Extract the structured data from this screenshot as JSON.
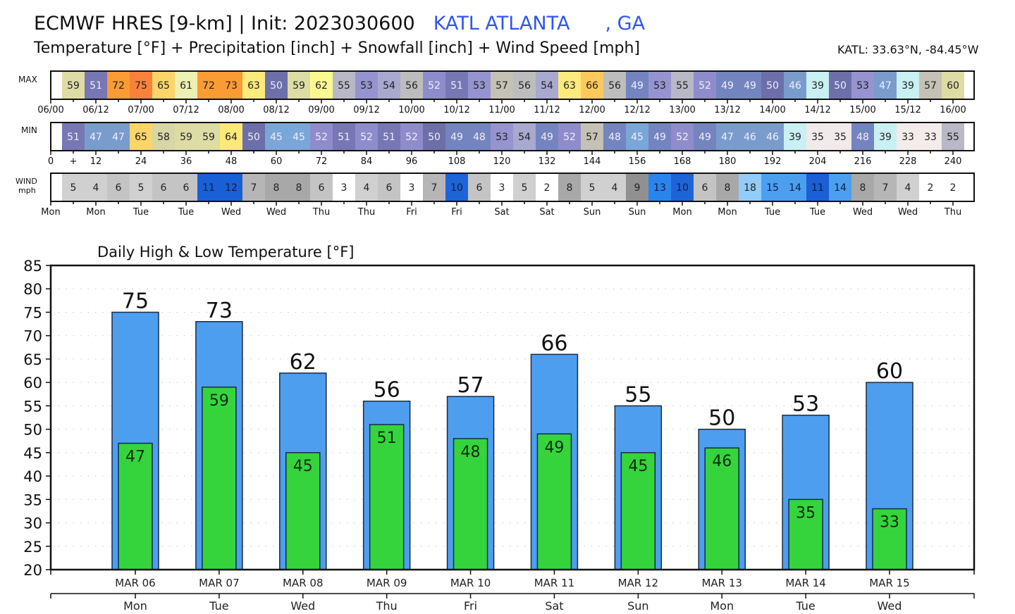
{
  "header": {
    "title": "ECMWF HRES [9-km] | Init: 2023030600",
    "station": "KATL ATLANTA",
    "state": ", GA",
    "subtitle": "Temperature [°F] + Precipitation [inch] + Snowfall [inch] + Wind Speed [mph]",
    "coords": "KATL: 33.63°N, -84.45°W"
  },
  "colors": {
    "station_text": "#3355ee",
    "high_bar": "#4d9eef",
    "low_bar": "#36d43c",
    "grid": "#cccccc"
  },
  "chart_data": [
    {
      "type": "heatmap",
      "name": "max-temperature-strip",
      "label": "MAX",
      "unit": "°F",
      "x_hours": [
        6,
        12,
        18,
        24,
        30,
        36,
        42,
        48,
        54,
        60,
        66,
        72,
        78,
        84,
        90,
        96,
        102,
        108,
        114,
        120,
        126,
        132,
        138,
        144,
        150,
        156,
        162,
        168,
        174,
        180,
        186,
        192,
        198,
        204,
        210,
        216,
        222,
        228,
        234,
        240
      ],
      "values": [
        59,
        51,
        72,
        75,
        65,
        61,
        72,
        73,
        63,
        50,
        59,
        62,
        55,
        53,
        54,
        56,
        52,
        51,
        53,
        57,
        56,
        54,
        63,
        66,
        56,
        49,
        53,
        55,
        52,
        49,
        49,
        50,
        46,
        39,
        50,
        53,
        47,
        39,
        57,
        60
      ],
      "tick_labels": [
        "06/00",
        "06/12",
        "07/00",
        "07/12",
        "08/00",
        "08/12",
        "09/00",
        "09/12",
        "10/00",
        "10/12",
        "11/00",
        "11/12",
        "12/00",
        "12/12",
        "13/00",
        "13/12",
        "14/00",
        "14/12",
        "15/00",
        "15/12",
        "16/00"
      ]
    },
    {
      "type": "heatmap",
      "name": "min-temperature-strip",
      "label": "MIN",
      "unit": "°F",
      "values": [
        51,
        47,
        47,
        65,
        58,
        59,
        59,
        64,
        50,
        45,
        45,
        52,
        51,
        52,
        51,
        52,
        50,
        49,
        48,
        53,
        54,
        49,
        52,
        57,
        48,
        45,
        49,
        52,
        49,
        47,
        46,
        46,
        39,
        35,
        35,
        48,
        39,
        33,
        33,
        55
      ],
      "tick_labels": [
        "0",
        "+",
        "12",
        "24",
        "36",
        "48",
        "60",
        "72",
        "84",
        "96",
        "108",
        "120",
        "132",
        "144",
        "156",
        "168",
        "180",
        "192",
        "204",
        "216",
        "228",
        "240"
      ]
    },
    {
      "type": "heatmap",
      "name": "wind-speed-strip",
      "label": "WIND",
      "sublabel": "mph",
      "unit": "mph",
      "values": [
        5,
        4,
        6,
        5,
        6,
        6,
        11,
        12,
        7,
        8,
        8,
        6,
        3,
        4,
        6,
        3,
        7,
        10,
        6,
        3,
        5,
        2,
        8,
        5,
        4,
        9,
        13,
        10,
        6,
        8,
        18,
        15,
        14,
        11,
        14,
        8,
        7,
        4,
        2,
        2
      ],
      "tick_labels": [
        "Mon",
        "Mon",
        "Tue",
        "Tue",
        "Wed",
        "Wed",
        "Thu",
        "Thu",
        "Fri",
        "Fri",
        "Sat",
        "Sat",
        "Sun",
        "Sun",
        "Mon",
        "Mon",
        "Tue",
        "Tue",
        "Wed",
        "Wed",
        "Thu"
      ]
    },
    {
      "type": "bar",
      "title": "Daily High & Low Temperature [°F]",
      "categories": [
        "MAR 06",
        "MAR 07",
        "MAR 08",
        "MAR 09",
        "MAR 10",
        "MAR 11",
        "MAR 12",
        "MAR 13",
        "MAR 14",
        "MAR 15"
      ],
      "weekdays": [
        "Mon",
        "Tue",
        "Wed",
        "Thu",
        "Fri",
        "Sat",
        "Sun",
        "Mon",
        "Tue",
        "Wed"
      ],
      "series": [
        {
          "name": "High",
          "values": [
            75,
            73,
            62,
            56,
            57,
            66,
            55,
            50,
            53,
            60
          ]
        },
        {
          "name": "Low",
          "values": [
            47,
            59,
            45,
            51,
            48,
            49,
            45,
            46,
            35,
            33
          ]
        }
      ],
      "ylim": [
        20,
        85
      ],
      "yticks": [
        "20",
        "25",
        "30",
        "35",
        "40",
        "45",
        "50",
        "55",
        "60",
        "65",
        "70",
        "75",
        "80",
        "85"
      ],
      "grid": true,
      "xlabel": "",
      "ylabel": ""
    }
  ]
}
